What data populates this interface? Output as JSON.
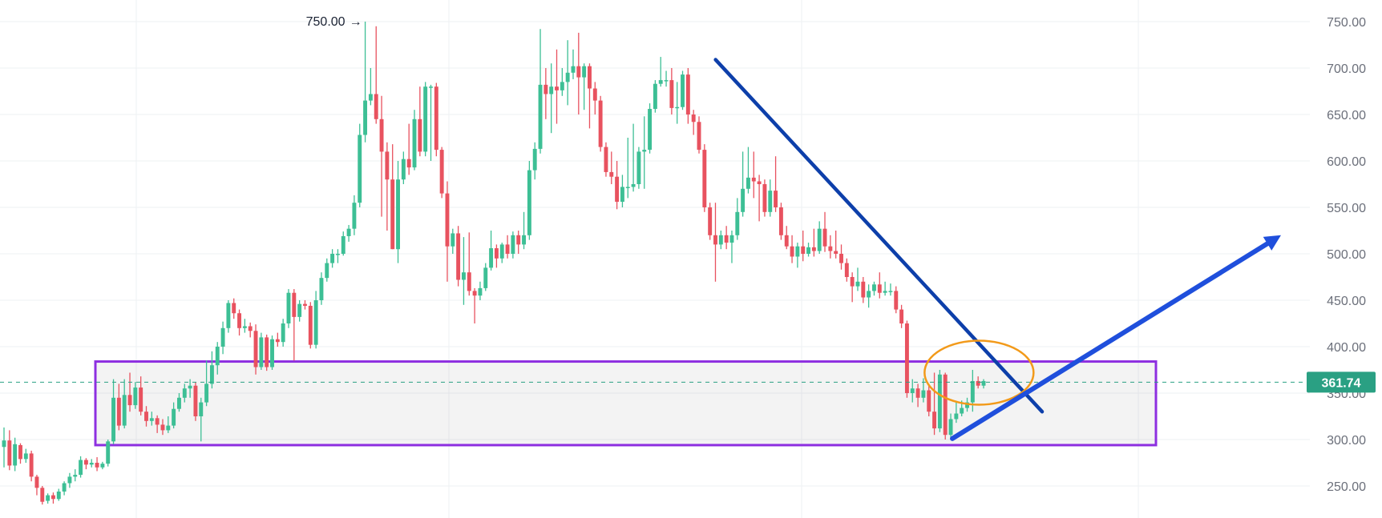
{
  "chart_data": {
    "type": "candlestick",
    "title": "",
    "xlabel": "",
    "ylabel": "",
    "ylim": [
      223,
      775
    ],
    "y_ticks": [
      "750.00",
      "700.00",
      "650.00",
      "600.00",
      "550.00",
      "500.00",
      "450.00",
      "400.00",
      "350.00",
      "300.00",
      "250.00"
    ],
    "grid": true,
    "colors": {
      "up": "#3dbf95",
      "down": "#e8525f",
      "price_line": "#2aa083",
      "zone_border": "#8d2fe0",
      "trendline": "#0d3faa",
      "arrow": "#1f4fdc",
      "highlight_circle": "#f29a1a",
      "axis_text": "#6b6f7a"
    },
    "current_price": {
      "label": "361.74",
      "value": 361.74
    },
    "peak_annotation": {
      "label": "750.00",
      "value": 750
    },
    "support_zone": {
      "top": 384,
      "bottom": 294
    },
    "candles": [
      [
        292,
        299,
        270,
        313
      ],
      [
        299,
        272,
        267,
        310
      ],
      [
        272,
        295,
        266,
        302
      ],
      [
        294,
        279,
        274,
        296
      ],
      [
        279,
        285,
        275,
        290
      ],
      [
        285,
        260,
        255,
        288
      ],
      [
        260,
        248,
        240,
        262
      ],
      [
        248,
        233,
        230,
        250
      ],
      [
        234,
        240,
        231,
        242
      ],
      [
        240,
        236,
        231,
        243
      ],
      [
        236,
        244,
        234,
        247
      ],
      [
        244,
        253,
        240,
        255
      ],
      [
        253,
        260,
        248,
        264
      ],
      [
        260,
        262,
        255,
        268
      ],
      [
        262,
        278,
        259,
        282
      ],
      [
        278,
        273,
        268,
        280
      ],
      [
        273,
        275,
        270,
        279
      ],
      [
        275,
        270,
        266,
        281
      ],
      [
        270,
        274,
        268,
        276
      ],
      [
        274,
        298,
        271,
        300
      ],
      [
        298,
        345,
        295,
        365
      ],
      [
        345,
        315,
        310,
        360
      ],
      [
        315,
        348,
        312,
        365
      ],
      [
        348,
        337,
        330,
        372
      ],
      [
        337,
        356,
        333,
        362
      ],
      [
        356,
        330,
        326,
        368
      ],
      [
        330,
        320,
        314,
        336
      ],
      [
        320,
        323,
        315,
        330
      ],
      [
        323,
        316,
        307,
        326
      ],
      [
        316,
        310,
        305,
        322
      ],
      [
        310,
        315,
        307,
        325
      ],
      [
        315,
        333,
        312,
        340
      ],
      [
        333,
        345,
        330,
        350
      ],
      [
        345,
        355,
        340,
        360
      ],
      [
        355,
        358,
        345,
        365
      ],
      [
        358,
        325,
        320,
        362
      ],
      [
        325,
        340,
        298,
        345
      ],
      [
        340,
        360,
        336,
        385
      ],
      [
        360,
        380,
        355,
        395
      ],
      [
        380,
        400,
        370,
        405
      ],
      [
        400,
        420,
        392,
        427
      ],
      [
        420,
        447,
        415,
        450
      ],
      [
        447,
        436,
        430,
        452
      ],
      [
        436,
        420,
        412,
        440
      ],
      [
        420,
        422,
        415,
        430
      ],
      [
        422,
        417,
        410,
        426
      ],
      [
        417,
        378,
        370,
        424
      ],
      [
        378,
        410,
        375,
        415
      ],
      [
        410,
        378,
        374,
        413
      ],
      [
        378,
        408,
        375,
        412
      ],
      [
        408,
        405,
        400,
        415
      ],
      [
        405,
        425,
        400,
        430
      ],
      [
        425,
        458,
        420,
        462
      ],
      [
        458,
        432,
        385,
        462
      ],
      [
        432,
        446,
        427,
        450
      ],
      [
        446,
        444,
        440,
        450
      ],
      [
        444,
        402,
        398,
        448
      ],
      [
        402,
        450,
        398,
        460
      ],
      [
        450,
        474,
        445,
        480
      ],
      [
        474,
        490,
        470,
        495
      ],
      [
        490,
        500,
        485,
        505
      ],
      [
        500,
        500,
        490,
        505
      ],
      [
        500,
        519,
        498,
        524
      ],
      [
        519,
        527,
        513,
        531
      ],
      [
        527,
        555,
        520,
        563
      ],
      [
        555,
        628,
        550,
        640
      ],
      [
        628,
        665,
        620,
        750
      ],
      [
        665,
        672,
        660,
        700
      ],
      [
        672,
        645,
        640,
        745
      ],
      [
        645,
        610,
        540,
        670
      ],
      [
        610,
        580,
        525,
        620
      ],
      [
        580,
        505,
        505,
        618
      ],
      [
        505,
        580,
        490,
        600
      ],
      [
        580,
        602,
        575,
        610
      ],
      [
        602,
        593,
        585,
        640
      ],
      [
        593,
        645,
        590,
        655
      ],
      [
        645,
        610,
        605,
        680
      ],
      [
        610,
        680,
        605,
        685
      ],
      [
        680,
        680,
        600,
        682
      ],
      [
        680,
        612,
        605,
        684
      ],
      [
        612,
        565,
        560,
        615
      ],
      [
        565,
        508,
        470,
        578
      ],
      [
        508,
        522,
        500,
        527
      ],
      [
        522,
        472,
        465,
        530
      ],
      [
        472,
        480,
        445,
        518
      ],
      [
        480,
        460,
        455,
        523
      ],
      [
        460,
        455,
        425,
        463
      ],
      [
        455,
        463,
        450,
        470
      ],
      [
        463,
        485,
        460,
        490
      ],
      [
        485,
        506,
        482,
        525
      ],
      [
        506,
        495,
        485,
        510
      ],
      [
        495,
        510,
        490,
        512
      ],
      [
        510,
        500,
        495,
        520
      ],
      [
        500,
        520,
        495,
        524
      ],
      [
        520,
        510,
        500,
        525
      ],
      [
        510,
        520,
        505,
        545
      ],
      [
        520,
        590,
        515,
        600
      ],
      [
        590,
        613,
        580,
        620
      ],
      [
        613,
        682,
        608,
        742
      ],
      [
        682,
        672,
        645,
        700
      ],
      [
        672,
        680,
        630,
        705
      ],
      [
        680,
        676,
        640,
        720
      ],
      [
        676,
        685,
        670,
        700
      ],
      [
        685,
        695,
        660,
        730
      ],
      [
        695,
        702,
        688,
        720
      ],
      [
        702,
        690,
        650,
        738
      ],
      [
        690,
        702,
        655,
        705
      ],
      [
        702,
        678,
        635,
        705
      ],
      [
        678,
        665,
        650,
        685
      ],
      [
        665,
        615,
        610,
        670
      ],
      [
        615,
        588,
        583,
        620
      ],
      [
        588,
        583,
        575,
        610
      ],
      [
        583,
        556,
        548,
        600
      ],
      [
        556,
        572,
        550,
        585
      ],
      [
        572,
        572,
        560,
        625
      ],
      [
        572,
        575,
        567,
        640
      ],
      [
        575,
        610,
        570,
        615
      ],
      [
        610,
        612,
        570,
        648
      ],
      [
        612,
        656,
        608,
        662
      ],
      [
        656,
        683,
        652,
        687
      ],
      [
        683,
        687,
        680,
        712
      ],
      [
        687,
        687,
        680,
        697
      ],
      [
        687,
        657,
        650,
        700
      ],
      [
        657,
        658,
        640,
        685
      ],
      [
        658,
        693,
        655,
        697
      ],
      [
        693,
        650,
        640,
        700
      ],
      [
        650,
        642,
        628,
        655
      ],
      [
        642,
        612,
        608,
        648
      ],
      [
        612,
        550,
        545,
        618
      ],
      [
        550,
        520,
        515,
        555
      ],
      [
        520,
        510,
        470,
        555
      ],
      [
        510,
        520,
        505,
        525
      ],
      [
        520,
        512,
        505,
        530
      ],
      [
        512,
        520,
        490,
        525
      ],
      [
        520,
        545,
        515,
        560
      ],
      [
        545,
        570,
        540,
        610
      ],
      [
        570,
        582,
        565,
        615
      ],
      [
        582,
        578,
        560,
        610
      ],
      [
        578,
        575,
        535,
        585
      ],
      [
        575,
        545,
        540,
        580
      ],
      [
        545,
        568,
        540,
        580
      ],
      [
        568,
        550,
        545,
        605
      ],
      [
        550,
        520,
        515,
        555
      ],
      [
        520,
        508,
        505,
        530
      ],
      [
        508,
        497,
        490,
        520
      ],
      [
        497,
        508,
        485,
        512
      ],
      [
        508,
        500,
        492,
        525
      ],
      [
        500,
        507,
        497,
        512
      ],
      [
        507,
        503,
        497,
        527
      ],
      [
        503,
        527,
        500,
        535
      ],
      [
        527,
        508,
        502,
        545
      ],
      [
        508,
        503,
        495,
        520
      ],
      [
        503,
        500,
        495,
        525
      ],
      [
        500,
        490,
        483,
        510
      ],
      [
        490,
        475,
        470,
        495
      ],
      [
        475,
        465,
        448,
        480
      ],
      [
        465,
        470,
        460,
        485
      ],
      [
        470,
        453,
        447,
        475
      ],
      [
        453,
        460,
        442,
        467
      ],
      [
        460,
        467,
        455,
        470
      ],
      [
        467,
        458,
        452,
        480
      ],
      [
        458,
        460,
        455,
        470
      ],
      [
        460,
        460,
        455,
        468
      ],
      [
        460,
        440,
        436,
        465
      ],
      [
        440,
        425,
        420,
        445
      ],
      [
        425,
        350,
        345,
        428
      ],
      [
        350,
        355,
        340,
        365
      ],
      [
        355,
        345,
        335,
        360
      ],
      [
        345,
        353,
        340,
        366
      ],
      [
        353,
        330,
        325,
        360
      ],
      [
        330,
        312,
        305,
        372
      ],
      [
        312,
        370,
        308,
        375
      ],
      [
        370,
        305,
        300,
        372
      ],
      [
        305,
        322,
        302,
        328
      ],
      [
        322,
        328,
        318,
        340
      ],
      [
        328,
        334,
        325,
        342
      ],
      [
        334,
        340,
        330,
        345
      ],
      [
        340,
        363,
        330,
        375
      ],
      [
        363,
        358,
        355,
        368
      ],
      [
        358,
        363,
        355,
        365
      ]
    ]
  }
}
